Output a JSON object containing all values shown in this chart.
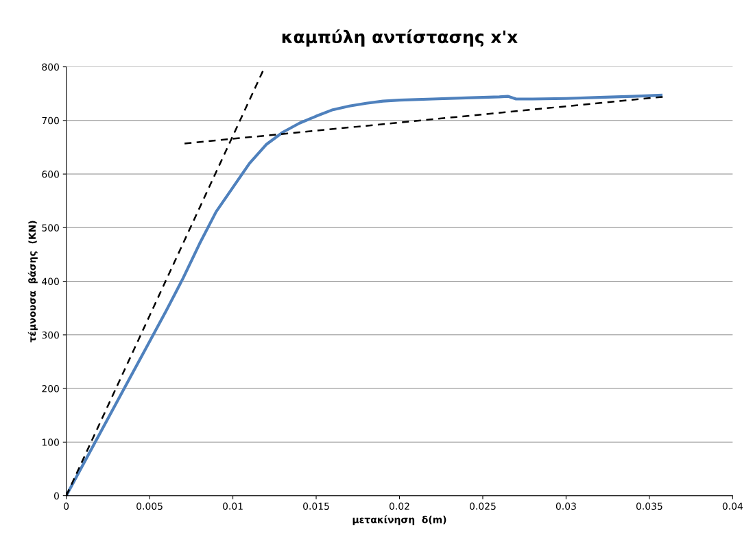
{
  "chart_data": {
    "type": "line",
    "title": "καμπύλη αντίστασης x'x",
    "xlabel": "μετακίνηση  δ(m)",
    "ylabel": "τέμνουσα  βάσης  (KN)",
    "xlim": [
      0,
      0.04
    ],
    "xticks": [
      0,
      0.005,
      0.01,
      0.015,
      0.02,
      0.025,
      0.03,
      0.035,
      0.04
    ],
    "ylim": [
      0,
      800
    ],
    "yticks": [
      0,
      100,
      200,
      300,
      400,
      500,
      600,
      700,
      800
    ],
    "grid": "y",
    "marker": "none",
    "series": [
      {
        "color": "#4f81bd",
        "line_style": "solid",
        "x": [
          0,
          0.002,
          0.004,
          0.006,
          0.007,
          0.008,
          0.009,
          0.01,
          0.011,
          0.012,
          0.013,
          0.014,
          0.015,
          0.016,
          0.017,
          0.018,
          0.019,
          0.02,
          0.022,
          0.024,
          0.026,
          0.0265,
          0.027,
          0.028,
          0.03,
          0.032,
          0.034,
          0.0357
        ],
        "values": [
          0,
          115,
          230,
          345,
          405,
          470,
          530,
          575,
          620,
          655,
          678,
          695,
          708,
          720,
          727,
          732,
          736,
          738,
          740,
          742,
          744,
          745,
          740,
          740,
          741,
          743,
          745,
          747
        ]
      },
      {
        "color": "#000000",
        "line_style": "dashed",
        "x": [
          0,
          0.0118
        ],
        "values": [
          0,
          792
        ]
      },
      {
        "color": "#000000",
        "line_style": "dashed",
        "x": [
          0.0071,
          0.0358
        ],
        "values": [
          657,
          744
        ]
      }
    ]
  }
}
